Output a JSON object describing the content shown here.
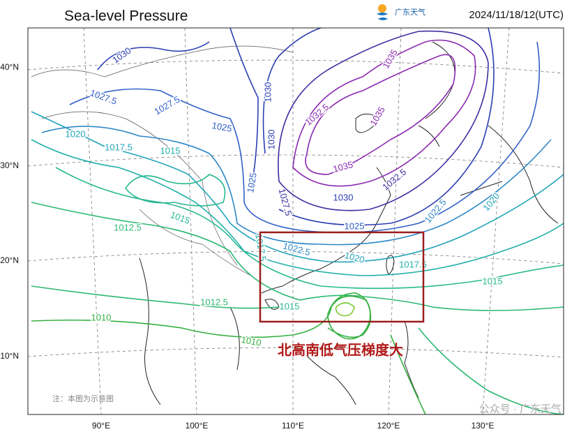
{
  "header": {
    "title": "Sea-level Pressure",
    "logo_text": "广东天气",
    "timestamp": "2024/11/18/12(UTC)"
  },
  "contour_labels": [
    1030,
    1027.5,
    1027.5,
    1025,
    1020,
    1017.5,
    1015,
    1030,
    1030,
    1025,
    1027.5,
    1032.5,
    1035,
    1035,
    1035,
    1032.5,
    1030,
    1025,
    1022.5,
    1020,
    1017.5,
    1012.5,
    1015,
    1022.5,
    1020,
    1017.5,
    1015,
    1012.5,
    1015,
    1010,
    1010
  ],
  "axes": {
    "lat_labels": [
      "40°N",
      "30°N",
      "20°N",
      "10°N"
    ],
    "lon_labels": [
      "90°E",
      "100°E",
      "110°E",
      "120°E",
      "130°E"
    ]
  },
  "annotation": "北高南低气压梯度大",
  "note": "注：本图为示意图",
  "watermark": "公众号 · 广东天气"
}
